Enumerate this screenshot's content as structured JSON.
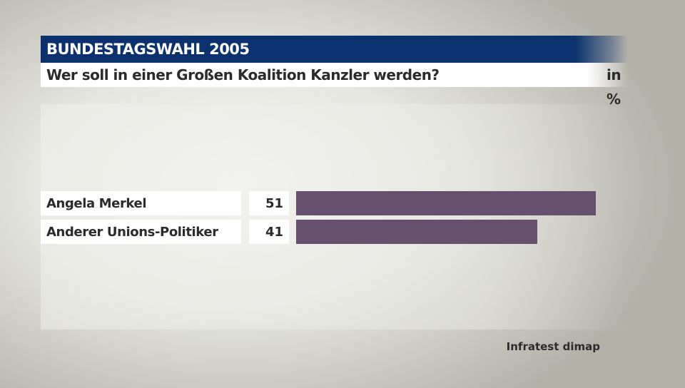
{
  "chart_data": {
    "type": "bar",
    "orientation": "horizontal",
    "title": "BUNDESTAGSWAHL 2005",
    "subtitle": "Wer soll in einer Großen Koalition Kanzler werden?",
    "unit": "in %",
    "categories": [
      "Angela Merkel",
      "Anderer Unions-Politiker"
    ],
    "values": [
      51,
      41
    ],
    "value_labels": [
      "51",
      "41"
    ],
    "bar_color": "#67506f",
    "header_color": "#0b316e",
    "source": "Infratest dimap",
    "xlim": [
      0,
      51
    ]
  }
}
